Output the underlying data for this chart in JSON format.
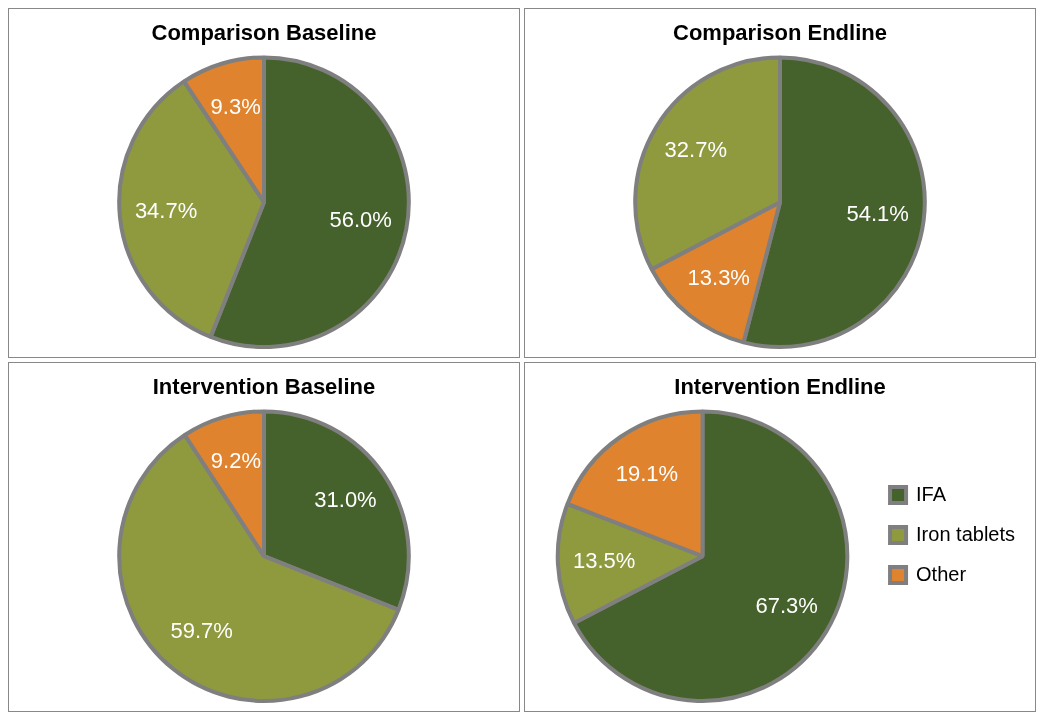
{
  "chart_data": [
    {
      "type": "pie",
      "title": "Comparison Baseline",
      "categories": [
        null,
        null,
        null
      ],
      "values": [
        56.0,
        34.7,
        9.3
      ],
      "colors": [
        "#46622c",
        "#8f9a3f",
        "#e0832f"
      ],
      "value_labels": [
        "56.0%",
        "34.7%",
        "9.3%"
      ]
    },
    {
      "type": "pie",
      "title": "Comparison Endline",
      "categories": [
        null,
        null,
        null
      ],
      "values": [
        54.1,
        13.3,
        32.7
      ],
      "colors": [
        "#46622c",
        "#e0832f",
        "#8f9a3f"
      ],
      "value_labels": [
        "54.1%",
        "13.3%",
        "32.7%"
      ]
    },
    {
      "type": "pie",
      "title": "Intervention Baseline",
      "categories": [
        null,
        null,
        null
      ],
      "values": [
        31.0,
        59.7,
        9.2
      ],
      "colors": [
        "#46622c",
        "#8f9a3f",
        "#e0832f"
      ],
      "value_labels": [
        "31.0%",
        "59.7%",
        "9.2%"
      ]
    },
    {
      "type": "pie",
      "title": "Intervention Endline",
      "categories": [
        "IFA",
        "Iron tablets",
        "Other"
      ],
      "values": [
        67.3,
        13.5,
        19.1
      ],
      "colors": [
        "#46622c",
        "#8f9a3f",
        "#e0832f"
      ],
      "value_labels": [
        "67.3%",
        "13.5%",
        "19.1%"
      ],
      "legend": "right"
    }
  ]
}
